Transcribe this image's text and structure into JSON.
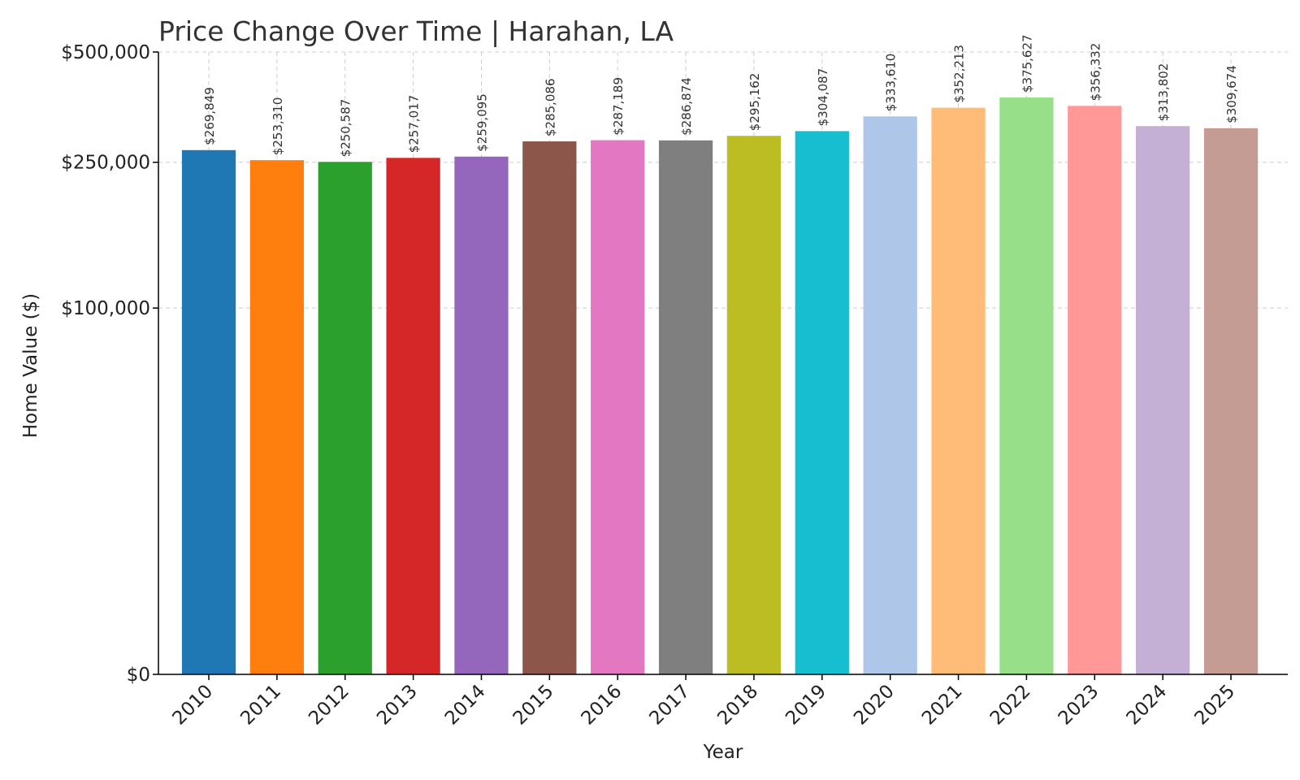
{
  "chart_data": {
    "type": "bar",
    "title": "Price Change Over Time | Harahan, LA",
    "xlabel": "Year",
    "ylabel": "Home Value ($)",
    "ylim": [
      0,
      500000
    ],
    "y_scale": "symlog",
    "y_ticks": [
      0,
      100000,
      250000,
      500000
    ],
    "y_tick_labels": [
      "$0",
      "$100,000",
      "$250,000",
      "$500,000"
    ],
    "grid": true,
    "categories": [
      "2010",
      "2011",
      "2012",
      "2013",
      "2014",
      "2015",
      "2016",
      "2017",
      "2018",
      "2019",
      "2020",
      "2021",
      "2022",
      "2023",
      "2024",
      "2025"
    ],
    "values": [
      269849,
      253310,
      250587,
      257017,
      259095,
      285086,
      287189,
      286874,
      295162,
      304087,
      333610,
      352213,
      375627,
      356332,
      313802,
      309674
    ],
    "value_labels": [
      "$269,849",
      "$253,310",
      "$250,587",
      "$257,017",
      "$259,095",
      "$285,086",
      "$287,189",
      "$286,874",
      "$295,162",
      "$304,087",
      "$333,610",
      "$352,213",
      "$375,627",
      "$356,332",
      "$313,802",
      "$309,674"
    ],
    "colors": [
      "#1f77b4",
      "#ff7f0e",
      "#2ca02c",
      "#d62728",
      "#9467bd",
      "#8c564b",
      "#e377c2",
      "#7f7f7f",
      "#bcbd22",
      "#17becf",
      "#aec7e8",
      "#ffbb78",
      "#98df8a",
      "#ff9896",
      "#c5b0d5",
      "#c49c94"
    ]
  }
}
